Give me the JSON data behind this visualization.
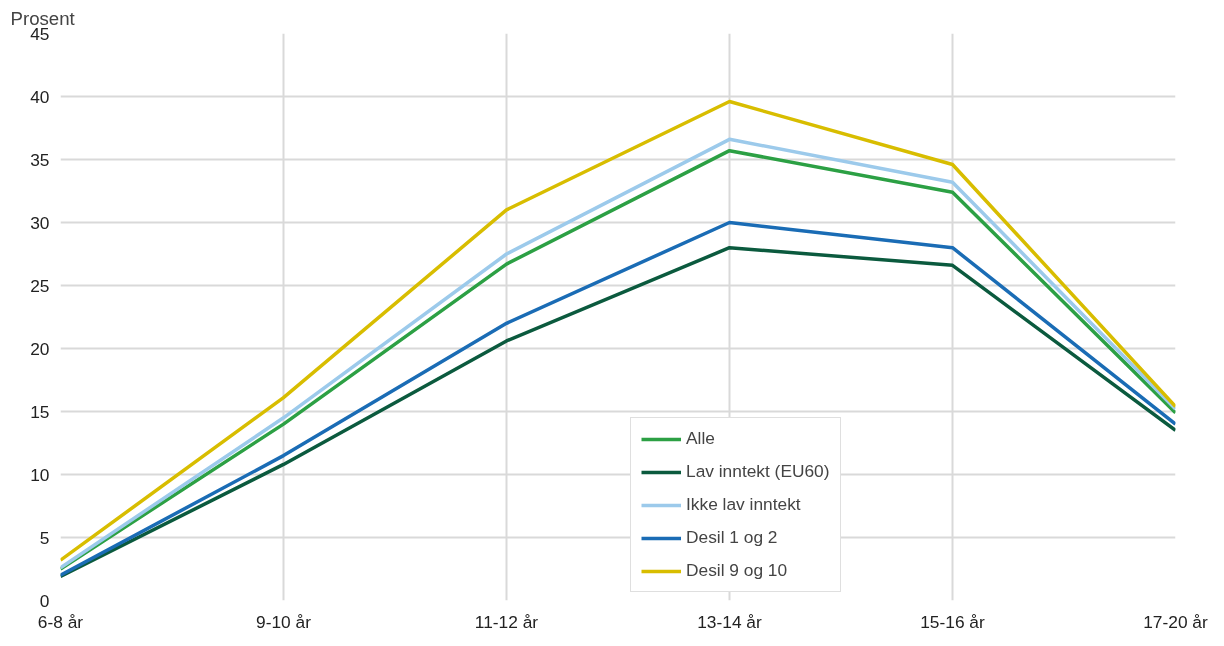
{
  "chart_data": {
    "type": "line",
    "ylabel": "Prosent",
    "categories": [
      "6-8 år",
      "9-10 år",
      "11-12 år",
      "13-14 år",
      "15-16 år",
      "17-20 år"
    ],
    "series": [
      {
        "name": "Alle",
        "color": "#2ca044",
        "values": [
          2.5,
          14.0,
          26.7,
          35.7,
          32.4,
          14.9
        ]
      },
      {
        "name": "Lav inntekt (EU60)",
        "color": "#0b5a3e",
        "values": [
          1.9,
          10.8,
          20.6,
          28.0,
          26.6,
          13.5
        ]
      },
      {
        "name": "Ikke lav inntekt",
        "color": "#9ccaeb",
        "values": [
          2.6,
          14.5,
          27.5,
          36.6,
          33.2,
          15.2
        ]
      },
      {
        "name": "Desil 1 og 2",
        "color": "#1a6cb5",
        "values": [
          2.0,
          11.5,
          22.0,
          30.0,
          28.0,
          14.0
        ]
      },
      {
        "name": "Desil 9 og 10",
        "color": "#d8bd00",
        "values": [
          3.2,
          16.1,
          31.0,
          39.6,
          34.6,
          15.4
        ]
      }
    ],
    "ylim": [
      0,
      45
    ],
    "yticks": [
      0,
      5,
      10,
      15,
      20,
      25,
      30,
      35,
      40,
      45
    ],
    "grid": true,
    "legend": "bottom",
    "marker": "none",
    "line_style": "solid"
  }
}
